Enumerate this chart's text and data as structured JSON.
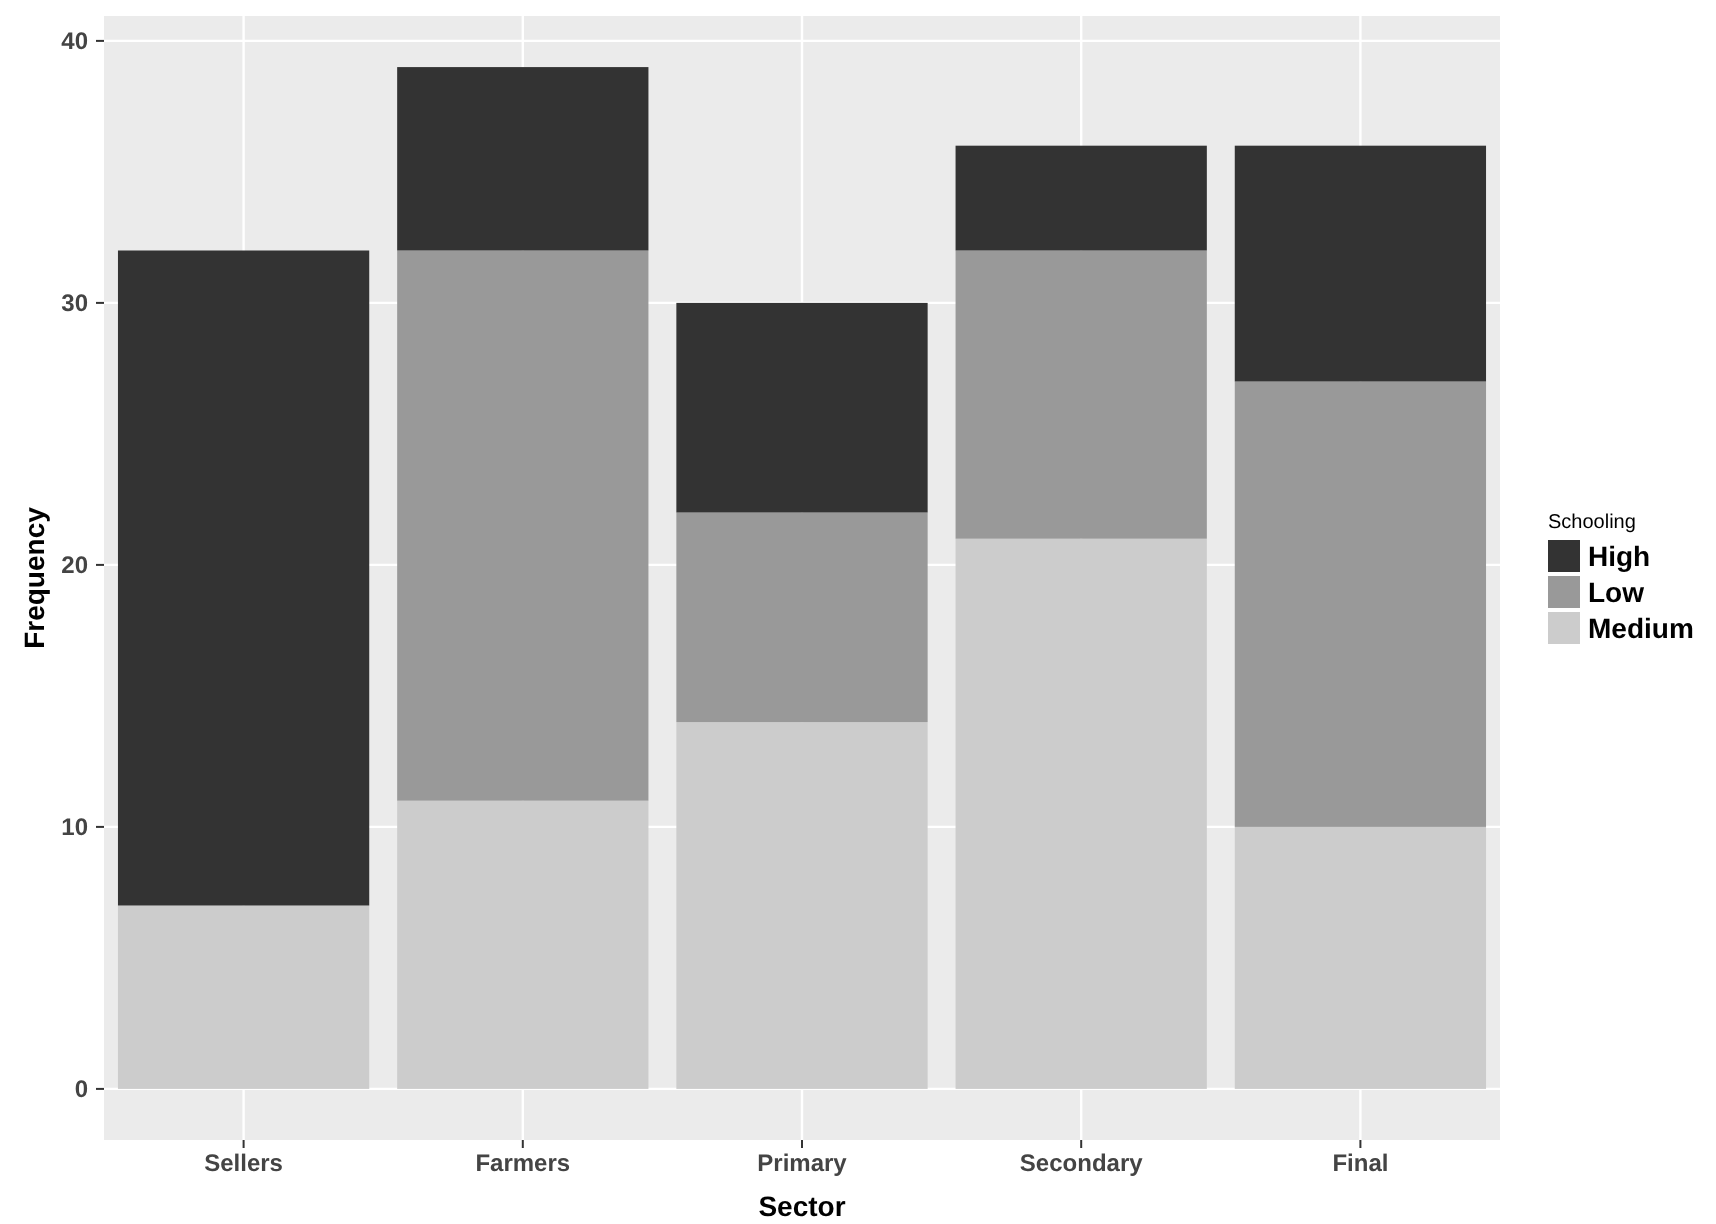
{
  "chart_data": {
    "type": "bar",
    "stacked": true,
    "xlabel": "Sector",
    "ylabel": "Frequency",
    "legend_title": "Schooling",
    "legend": "right",
    "grid": true,
    "categories": [
      "Sellers",
      "Farmers",
      "Primary",
      "Secondary",
      "Final"
    ],
    "ylim": [
      -1.95,
      40.95
    ],
    "yticks": [
      0,
      10,
      20,
      30,
      40
    ],
    "series": [
      {
        "name": "Medium",
        "color": "#cccccc",
        "values": [
          7,
          11,
          14,
          21,
          10
        ]
      },
      {
        "name": "Low",
        "color": "#999999",
        "values": [
          0,
          21,
          8,
          11,
          17
        ]
      },
      {
        "name": "High",
        "color": "#333333",
        "values": [
          25,
          7,
          8,
          4,
          9
        ]
      }
    ]
  }
}
